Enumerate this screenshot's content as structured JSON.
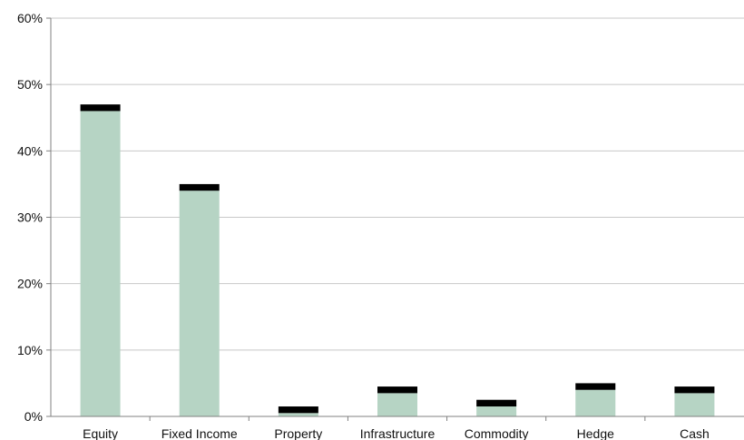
{
  "chart_data": {
    "type": "bar",
    "title": "",
    "xlabel": "",
    "ylabel": "",
    "categories": [
      "Equity",
      "Fixed Income",
      "Property",
      "Infrastructure",
      "Commodity",
      "Hedge",
      "Cash"
    ],
    "series": [
      {
        "values": [
          46.0,
          34.0,
          0.5,
          3.5,
          1.5,
          4.0,
          3.5
        ]
      },
      {
        "values": [
          1.0,
          1.0,
          1.0,
          1.0,
          1.0,
          1.0,
          1.0
        ]
      }
    ],
    "y_ticks": [
      "0%",
      "10%",
      "20%",
      "30%",
      "40%",
      "50%",
      "60%"
    ],
    "y_tick_values": [
      0,
      10,
      20,
      30,
      40,
      50,
      60
    ],
    "ylim": [
      0,
      60
    ],
    "stacked": true,
    "grid": true,
    "legend": "none",
    "colors": {
      "base": "#b6d4c4",
      "cap": "#000000",
      "grid": "#c8c8c8",
      "axis": "#808080"
    }
  }
}
